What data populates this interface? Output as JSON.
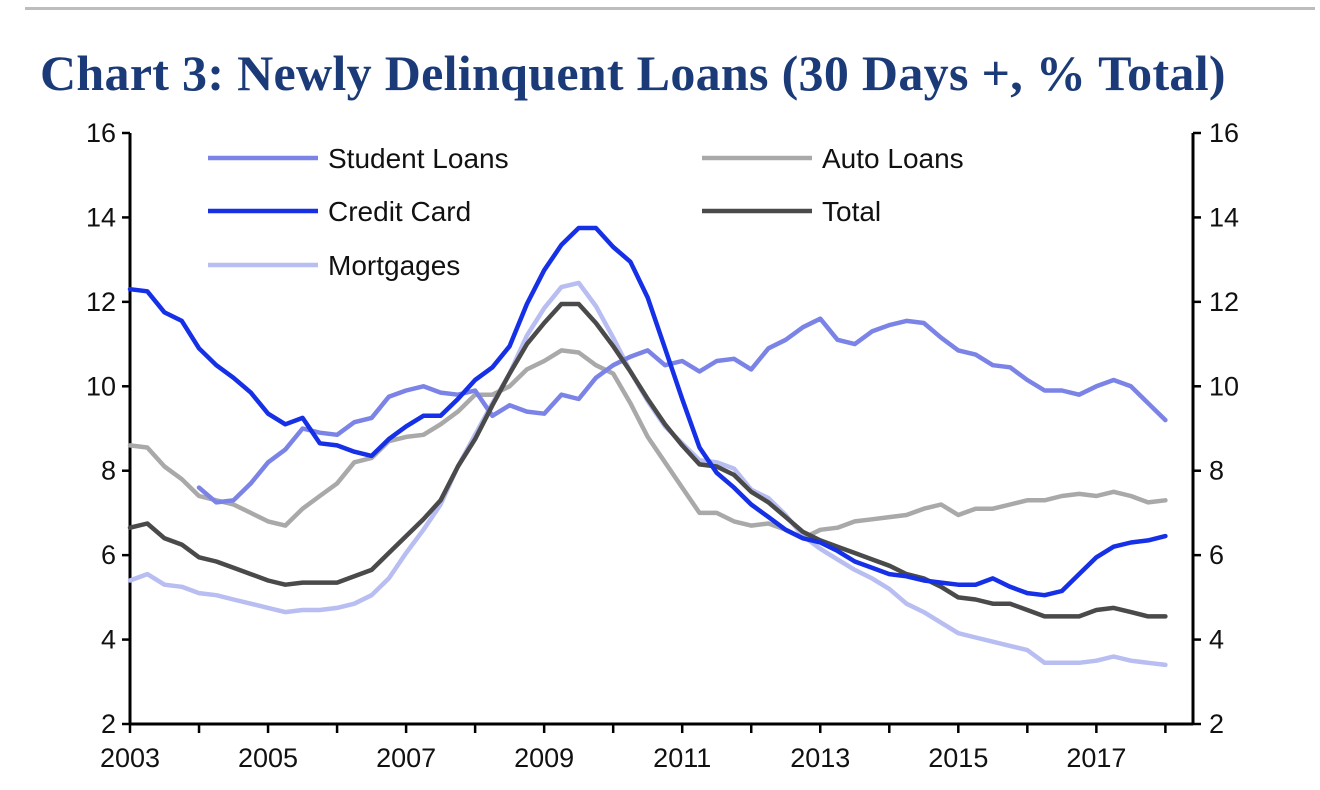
{
  "chart_data": {
    "type": "line",
    "title": "Chart 3: Newly Delinquent Loans (30 Days +, % Total)",
    "xlabel": "",
    "ylabel": "",
    "xlim": [
      2003,
      2018.4
    ],
    "ylim": [
      2,
      16
    ],
    "y_ticks": [
      2,
      4,
      6,
      8,
      10,
      12,
      14,
      16
    ],
    "x_tick_labels": [
      "2003",
      "2005",
      "2007",
      "2009",
      "2011",
      "2013",
      "2015",
      "2017"
    ],
    "x_tick_values": [
      2003,
      2005,
      2007,
      2009,
      2011,
      2013,
      2015,
      2017
    ],
    "secondary_axis": "right (same scale)",
    "legend_position": "top-left",
    "series": [
      {
        "name": "Student Loans",
        "color": "#7b84e6",
        "x": [
          2004.0,
          2004.25,
          2004.5,
          2004.75,
          2005.0,
          2005.25,
          2005.5,
          2005.75,
          2006.0,
          2006.25,
          2006.5,
          2006.75,
          2007.0,
          2007.25,
          2007.5,
          2007.75,
          2008.0,
          2008.25,
          2008.5,
          2008.75,
          2009.0,
          2009.25,
          2009.5,
          2009.75,
          2010.0,
          2010.25,
          2010.5,
          2010.75,
          2011.0,
          2011.25,
          2011.5,
          2011.75,
          2012.0,
          2012.25,
          2012.5,
          2012.75,
          2013.0,
          2013.25,
          2013.5,
          2013.75,
          2014.0,
          2014.25,
          2014.5,
          2014.75,
          2015.0,
          2015.25,
          2015.5,
          2015.75,
          2016.0,
          2016.25,
          2016.5,
          2016.75,
          2017.0,
          2017.25,
          2017.5,
          2017.75,
          2018.0
        ],
        "values": [
          7.6,
          7.25,
          7.3,
          7.7,
          8.2,
          8.5,
          9.0,
          8.9,
          8.85,
          9.15,
          9.25,
          9.75,
          9.9,
          10.0,
          9.85,
          9.8,
          9.9,
          9.3,
          9.55,
          9.4,
          9.35,
          9.8,
          9.7,
          10.2,
          10.5,
          10.7,
          10.85,
          10.5,
          10.6,
          10.35,
          10.6,
          10.65,
          10.4,
          10.9,
          11.1,
          11.4,
          11.6,
          11.1,
          11.0,
          11.3,
          11.45,
          11.55,
          11.5,
          11.15,
          10.85,
          10.75,
          10.5,
          10.45,
          10.15,
          9.9,
          9.9,
          9.8,
          10.0,
          10.15,
          10.0,
          9.6,
          9.2
        ]
      },
      {
        "name": "Auto Loans",
        "color": "#a9a9a9",
        "x": [
          2003.0,
          2003.25,
          2003.5,
          2003.75,
          2004.0,
          2004.25,
          2004.5,
          2004.75,
          2005.0,
          2005.25,
          2005.5,
          2005.75,
          2006.0,
          2006.25,
          2006.5,
          2006.75,
          2007.0,
          2007.25,
          2007.5,
          2007.75,
          2008.0,
          2008.25,
          2008.5,
          2008.75,
          2009.0,
          2009.25,
          2009.5,
          2009.75,
          2010.0,
          2010.25,
          2010.5,
          2010.75,
          2011.0,
          2011.25,
          2011.5,
          2011.75,
          2012.0,
          2012.25,
          2012.5,
          2012.75,
          2013.0,
          2013.25,
          2013.5,
          2013.75,
          2014.0,
          2014.25,
          2014.5,
          2014.75,
          2015.0,
          2015.25,
          2015.5,
          2015.75,
          2016.0,
          2016.25,
          2016.5,
          2016.75,
          2017.0,
          2017.25,
          2017.5,
          2017.75,
          2018.0
        ],
        "values": [
          8.6,
          8.55,
          8.1,
          7.8,
          7.4,
          7.3,
          7.2,
          7.0,
          6.8,
          6.7,
          7.1,
          7.4,
          7.7,
          8.2,
          8.3,
          8.7,
          8.8,
          8.85,
          9.1,
          9.4,
          9.8,
          9.8,
          10.0,
          10.4,
          10.6,
          10.85,
          10.8,
          10.5,
          10.3,
          9.6,
          8.8,
          8.2,
          7.6,
          7.0,
          7.0,
          6.8,
          6.7,
          6.75,
          6.6,
          6.4,
          6.6,
          6.65,
          6.8,
          6.85,
          6.9,
          6.95,
          7.1,
          7.2,
          6.95,
          7.1,
          7.1,
          7.2,
          7.3,
          7.3,
          7.4,
          7.45,
          7.4,
          7.5,
          7.4,
          7.25,
          7.3
        ]
      },
      {
        "name": "Credit Card",
        "color": "#1530e6",
        "x": [
          2003.0,
          2003.25,
          2003.5,
          2003.75,
          2004.0,
          2004.25,
          2004.5,
          2004.75,
          2005.0,
          2005.25,
          2005.5,
          2005.75,
          2006.0,
          2006.25,
          2006.5,
          2006.75,
          2007.0,
          2007.25,
          2007.5,
          2007.75,
          2008.0,
          2008.25,
          2008.5,
          2008.75,
          2009.0,
          2009.25,
          2009.5,
          2009.75,
          2010.0,
          2010.25,
          2010.5,
          2010.75,
          2011.0,
          2011.25,
          2011.5,
          2011.75,
          2012.0,
          2012.25,
          2012.5,
          2012.75,
          2013.0,
          2013.25,
          2013.5,
          2013.75,
          2014.0,
          2014.25,
          2014.5,
          2014.75,
          2015.0,
          2015.25,
          2015.5,
          2015.75,
          2016.0,
          2016.25,
          2016.5,
          2016.75,
          2017.0,
          2017.25,
          2017.5,
          2017.75,
          2018.0
        ],
        "values": [
          12.3,
          12.25,
          11.75,
          11.55,
          10.9,
          10.5,
          10.2,
          9.85,
          9.35,
          9.1,
          9.25,
          8.65,
          8.6,
          8.45,
          8.35,
          8.75,
          9.05,
          9.3,
          9.3,
          9.7,
          10.15,
          10.45,
          10.95,
          11.95,
          12.75,
          13.35,
          13.75,
          13.75,
          13.3,
          12.95,
          12.1,
          10.9,
          9.7,
          8.55,
          7.95,
          7.6,
          7.2,
          6.9,
          6.6,
          6.4,
          6.3,
          6.1,
          5.85,
          5.7,
          5.55,
          5.5,
          5.4,
          5.35,
          5.3,
          5.3,
          5.45,
          5.25,
          5.1,
          5.05,
          5.15,
          5.55,
          5.95,
          6.2,
          6.3,
          6.35,
          6.45
        ]
      },
      {
        "name": "Total",
        "color": "#4a4a4a",
        "x": [
          2003.0,
          2003.25,
          2003.5,
          2003.75,
          2004.0,
          2004.25,
          2004.5,
          2004.75,
          2005.0,
          2005.25,
          2005.5,
          2005.75,
          2006.0,
          2006.25,
          2006.5,
          2006.75,
          2007.0,
          2007.25,
          2007.5,
          2007.75,
          2008.0,
          2008.25,
          2008.5,
          2008.75,
          2009.0,
          2009.25,
          2009.5,
          2009.75,
          2010.0,
          2010.25,
          2010.5,
          2010.75,
          2011.0,
          2011.25,
          2011.5,
          2011.75,
          2012.0,
          2012.25,
          2012.5,
          2012.75,
          2013.0,
          2013.25,
          2013.5,
          2013.75,
          2014.0,
          2014.25,
          2014.5,
          2014.75,
          2015.0,
          2015.25,
          2015.5,
          2015.75,
          2016.0,
          2016.25,
          2016.5,
          2016.75,
          2017.0,
          2017.25,
          2017.5,
          2017.75,
          2018.0
        ],
        "values": [
          6.65,
          6.75,
          6.4,
          6.25,
          5.95,
          5.85,
          5.7,
          5.55,
          5.4,
          5.3,
          5.35,
          5.35,
          5.35,
          5.5,
          5.65,
          6.05,
          6.45,
          6.85,
          7.3,
          8.1,
          8.75,
          9.55,
          10.3,
          11.0,
          11.5,
          11.95,
          11.95,
          11.5,
          10.95,
          10.35,
          9.7,
          9.1,
          8.6,
          8.15,
          8.1,
          7.9,
          7.5,
          7.25,
          6.9,
          6.55,
          6.35,
          6.2,
          6.05,
          5.9,
          5.75,
          5.55,
          5.45,
          5.25,
          5.0,
          4.95,
          4.85,
          4.85,
          4.7,
          4.55,
          4.55,
          4.55,
          4.7,
          4.75,
          4.65,
          4.55,
          4.55
        ]
      },
      {
        "name": "Mortgages",
        "color": "#b8bdf2",
        "x": [
          2003.0,
          2003.25,
          2003.5,
          2003.75,
          2004.0,
          2004.25,
          2004.5,
          2004.75,
          2005.0,
          2005.25,
          2005.5,
          2005.75,
          2006.0,
          2006.25,
          2006.5,
          2006.75,
          2007.0,
          2007.25,
          2007.5,
          2007.75,
          2008.0,
          2008.25,
          2008.5,
          2008.75,
          2009.0,
          2009.25,
          2009.5,
          2009.75,
          2010.0,
          2010.25,
          2010.5,
          2010.75,
          2011.0,
          2011.25,
          2011.5,
          2011.75,
          2012.0,
          2012.25,
          2012.5,
          2012.75,
          2013.0,
          2013.25,
          2013.5,
          2013.75,
          2014.0,
          2014.25,
          2014.5,
          2014.75,
          2015.0,
          2015.25,
          2015.5,
          2015.75,
          2016.0,
          2016.25,
          2016.5,
          2016.75,
          2017.0,
          2017.25,
          2017.5,
          2017.75,
          2018.0
        ],
        "values": [
          5.4,
          5.55,
          5.3,
          5.25,
          5.1,
          5.05,
          4.95,
          4.85,
          4.75,
          4.65,
          4.7,
          4.7,
          4.75,
          4.85,
          5.05,
          5.45,
          6.05,
          6.6,
          7.2,
          8.1,
          8.85,
          9.6,
          10.3,
          11.2,
          11.85,
          12.35,
          12.45,
          11.9,
          11.15,
          10.35,
          9.65,
          9.05,
          8.65,
          8.25,
          8.2,
          8.05,
          7.55,
          7.35,
          6.95,
          6.45,
          6.15,
          5.9,
          5.65,
          5.45,
          5.2,
          4.85,
          4.65,
          4.4,
          4.15,
          4.05,
          3.95,
          3.85,
          3.75,
          3.45,
          3.45,
          3.45,
          3.5,
          3.6,
          3.5,
          3.45,
          3.4
        ]
      }
    ]
  }
}
